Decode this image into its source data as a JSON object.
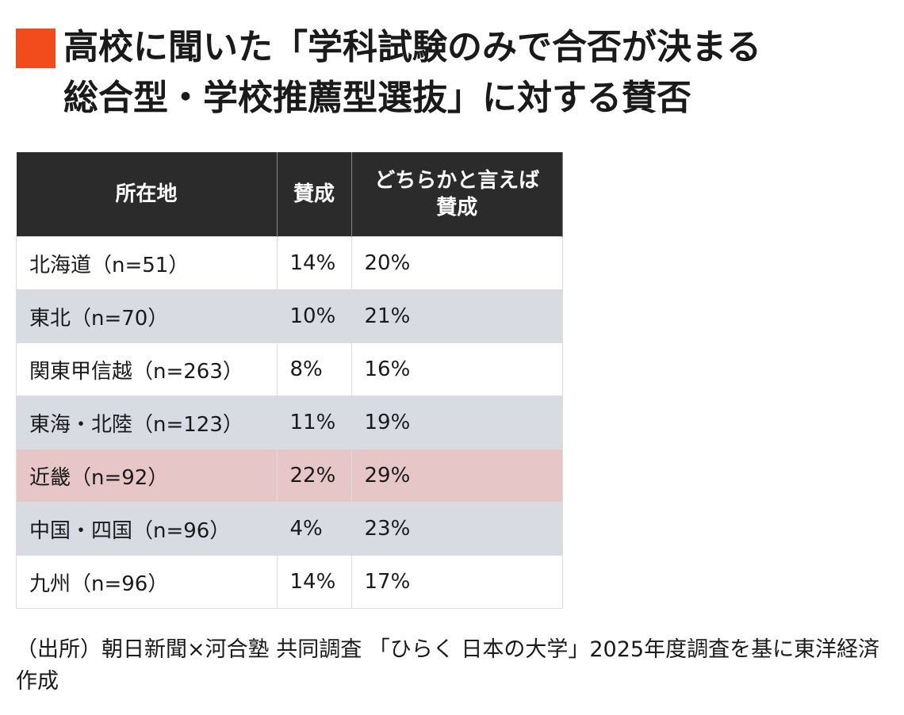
{
  "header": {
    "title_lines": [
      "高校に聞いた「学科試験のみで合否が決まる",
      "総合型・学校推薦型選抜」に対する賛否"
    ]
  },
  "table": {
    "columns": [
      "所在地",
      "賛成",
      "どちらかと言えば\n賛成"
    ],
    "rows": [
      [
        "北海道（n=51）",
        "14%",
        "20%"
      ],
      [
        "東北（n=70）",
        "10%",
        "21%"
      ],
      [
        "関東甲信越（n=263）",
        "8%",
        "16%"
      ],
      [
        "東海・北陸（n=123）",
        "11%",
        "19%"
      ],
      [
        "近畿（n=92）",
        "22%",
        "29%"
      ],
      [
        "中国・四国（n=96）",
        "4%",
        "23%"
      ],
      [
        "九州（n=96）",
        "14%",
        "17%"
      ]
    ]
  },
  "footer": {
    "source": "（出所）朝日新聞×河合塾 共同調査 「ひらく 日本の大学」2025年度調査を基に東洋経済作成"
  }
}
